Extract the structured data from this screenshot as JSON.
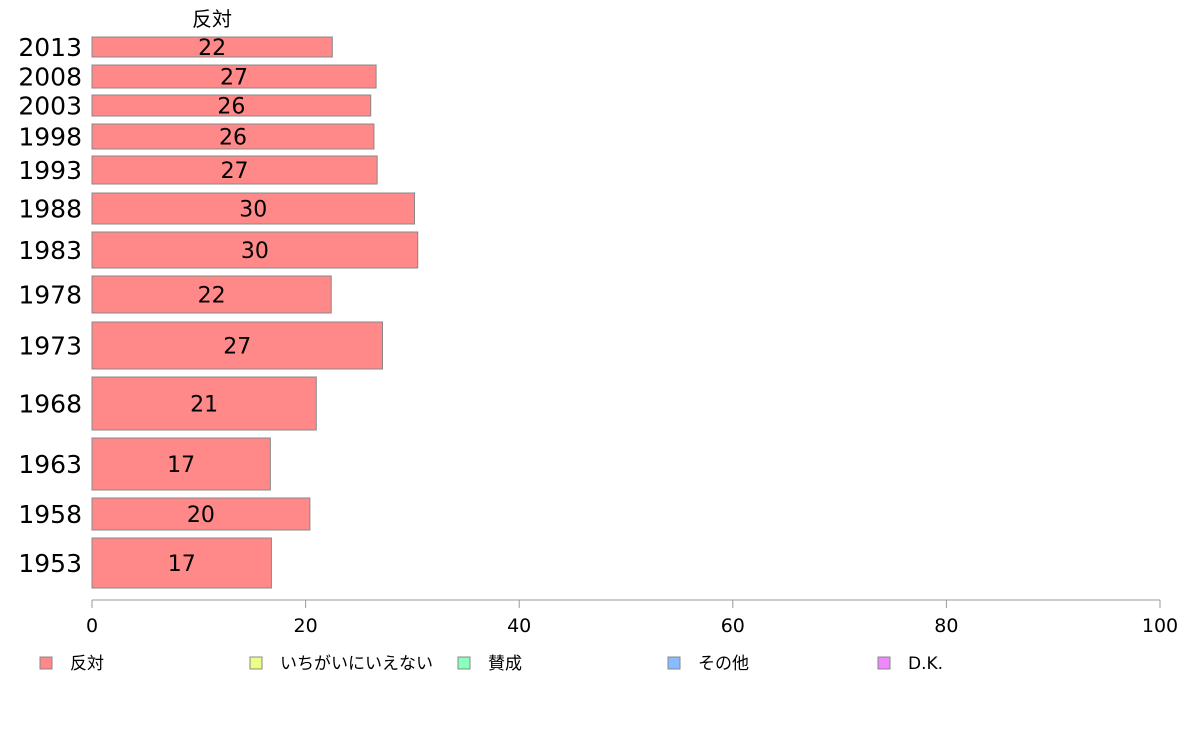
{
  "chart_data": {
    "type": "bar",
    "orientation": "horizontal",
    "title": "",
    "series_title": "反対",
    "categories": [
      "2013",
      "2008",
      "2003",
      "1998",
      "1993",
      "1988",
      "1983",
      "1978",
      "1973",
      "1968",
      "1963",
      "1958",
      "1953"
    ],
    "series": [
      {
        "name": "反対",
        "values": [
          22.5,
          26.6,
          26.1,
          26.4,
          26.7,
          30.2,
          30.5,
          22.4,
          27.2,
          21.0,
          16.7,
          20.4,
          16.8
        ],
        "labels": [
          "22",
          "27",
          "26",
          "26",
          "27",
          "30",
          "30",
          "22",
          "27",
          "21",
          "17",
          "20",
          "17"
        ],
        "color": "#ff8888"
      }
    ],
    "xlim": [
      0,
      100
    ],
    "xticks": [
      "0",
      "20",
      "40",
      "60",
      "80",
      "100"
    ],
    "grid": false,
    "legend": {
      "position": "bottom",
      "items": [
        {
          "name": "反対",
          "color": "#ff8888"
        },
        {
          "name": "いちがいにいえない",
          "color": "#eeff88"
        },
        {
          "name": "賛成",
          "color": "#88ffbb"
        },
        {
          "name": "その他",
          "color": "#88bbff"
        },
        {
          "name": "D.K.",
          "color": "#ee88ff"
        }
      ]
    }
  }
}
